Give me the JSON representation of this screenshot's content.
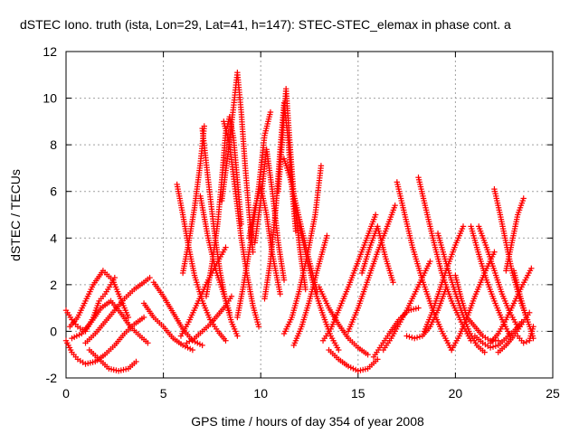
{
  "chart_data": {
    "type": "scatter",
    "title": "dSTEC Iono. truth (ista, Lon=29, Lat=41, h=147): STEC-STEC_elemax in phase cont. a",
    "xlabel": "GPS time / hours of day 354 of year 2008",
    "ylabel": "dSTEC  / TECUs",
    "xlim": [
      0,
      25
    ],
    "ylim": [
      -2,
      12
    ],
    "xticks": [
      0,
      5,
      10,
      15,
      20,
      25
    ],
    "yticks": [
      -2,
      0,
      2,
      4,
      6,
      8,
      10,
      12
    ],
    "grid": true,
    "marker": "plus",
    "color": "#ff0000",
    "series": [
      {
        "x": [
          0.0,
          0.3,
          0.6,
          1.0,
          1.4,
          1.7,
          2.0,
          2.3,
          2.5
        ],
        "y": [
          0.9,
          0.5,
          0.2,
          0.0,
          0.6,
          1.3,
          1.6,
          2.0,
          2.3
        ]
      },
      {
        "x": [
          0.2,
          0.6,
          1.0,
          1.4,
          1.9,
          2.4,
          2.8,
          3.2
        ],
        "y": [
          0.2,
          0.6,
          1.3,
          2.0,
          2.6,
          2.2,
          1.4,
          0.6
        ]
      },
      {
        "x": [
          0.3,
          0.8,
          1.3,
          1.8,
          2.3,
          2.8,
          3.3,
          3.8,
          4.2
        ],
        "y": [
          -0.3,
          -0.1,
          0.4,
          1.0,
          1.3,
          0.8,
          0.2,
          -0.2,
          -0.5
        ]
      },
      {
        "x": [
          0.0,
          0.3,
          0.6,
          1.0,
          1.5,
          2.0,
          2.5,
          3.0,
          3.5,
          4.0
        ],
        "y": [
          -0.4,
          -0.9,
          -1.2,
          -1.4,
          -1.3,
          -1.0,
          -0.6,
          -0.1,
          0.3,
          0.6
        ]
      },
      {
        "x": [
          1.2,
          1.7,
          2.2,
          2.7,
          3.2,
          3.6
        ],
        "y": [
          -0.8,
          -1.2,
          -1.6,
          -1.7,
          -1.6,
          -1.3
        ]
      },
      {
        "x": [
          1.0,
          1.5,
          2.0,
          2.5,
          3.0,
          3.5,
          4.0,
          4.3
        ],
        "y": [
          -0.5,
          -0.1,
          0.4,
          0.9,
          1.4,
          1.8,
          2.1,
          2.3
        ]
      },
      {
        "x": [
          4.0,
          4.5,
          5.0,
          5.5,
          6.0,
          6.5
        ],
        "y": [
          1.2,
          0.6,
          0.2,
          -0.3,
          -0.6,
          -0.8
        ]
      },
      {
        "x": [
          4.5,
          5.0,
          5.5,
          6.0,
          6.5,
          7.0
        ],
        "y": [
          2.1,
          1.5,
          0.8,
          0.1,
          -0.4,
          -0.6
        ]
      },
      {
        "x": [
          5.7,
          6.0,
          6.3,
          6.6,
          7.0,
          7.4,
          7.8,
          8.2
        ],
        "y": [
          6.3,
          5.0,
          3.6,
          2.4,
          1.3,
          0.5,
          0.0,
          -0.4
        ]
      },
      {
        "x": [
          5.9,
          6.3,
          6.8,
          7.3,
          7.8,
          8.2
        ],
        "y": [
          -0.2,
          0.4,
          1.3,
          2.2,
          3.0,
          3.6
        ]
      },
      {
        "x": [
          6.2,
          6.6,
          7.0,
          7.4,
          7.8,
          8.2,
          8.5
        ],
        "y": [
          -0.5,
          -0.3,
          0.0,
          0.3,
          0.7,
          1.1,
          1.5
        ]
      },
      {
        "x": [
          6.0,
          6.3,
          6.6,
          6.9,
          7.1
        ],
        "y": [
          2.5,
          3.8,
          5.3,
          7.2,
          8.8
        ]
      },
      {
        "x": [
          6.9,
          7.3,
          7.7,
          8.1,
          8.4
        ],
        "y": [
          5.8,
          4.0,
          2.6,
          1.6,
          0.8
        ]
      },
      {
        "x": [
          7.0,
          7.3,
          7.6,
          7.9,
          8.2,
          8.5,
          8.8
        ],
        "y": [
          8.7,
          6.5,
          4.4,
          2.6,
          1.3,
          0.4,
          -0.2
        ]
      },
      {
        "x": [
          7.2,
          7.5,
          7.8,
          8.0,
          8.2,
          8.4,
          8.6,
          8.8,
          9.0
        ],
        "y": [
          1.5,
          2.9,
          4.7,
          6.5,
          8.5,
          9.2,
          8.3,
          6.5,
          4.6
        ]
      },
      {
        "x": [
          8.0,
          8.3,
          8.6,
          8.8,
          9.0,
          9.2,
          9.4,
          9.6
        ],
        "y": [
          5.6,
          7.5,
          9.6,
          11.1,
          9.4,
          7.1,
          5.1,
          3.4
        ]
      },
      {
        "x": [
          8.1,
          8.4,
          8.7,
          9.0,
          9.3,
          9.6,
          9.9
        ],
        "y": [
          9.0,
          8.0,
          6.0,
          4.0,
          2.4,
          1.1,
          0.2
        ]
      },
      {
        "x": [
          8.8,
          9.1,
          9.5,
          9.9,
          10.2,
          10.5
        ],
        "y": [
          0.6,
          1.9,
          3.9,
          6.2,
          8.4,
          9.4
        ]
      },
      {
        "x": [
          9.4,
          9.7,
          10.0,
          10.3,
          10.6,
          11.0
        ],
        "y": [
          4.0,
          5.3,
          6.2,
          5.0,
          3.3,
          1.6
        ]
      },
      {
        "x": [
          9.7,
          10.0,
          10.3,
          10.6,
          10.9,
          11.2
        ],
        "y": [
          3.8,
          5.6,
          7.8,
          6.0,
          3.8,
          2.2
        ]
      },
      {
        "x": [
          10.2,
          10.5,
          10.8,
          11.0,
          11.2,
          11.4,
          11.6,
          11.8
        ],
        "y": [
          1.4,
          3.0,
          5.5,
          7.8,
          9.8,
          8.3,
          6.2,
          4.3
        ]
      },
      {
        "x": [
          10.9,
          11.1,
          11.3,
          11.5,
          11.7,
          12.0,
          12.3
        ],
        "y": [
          6.0,
          8.1,
          10.4,
          8.0,
          5.8,
          3.6,
          1.8
        ]
      },
      {
        "x": [
          11.2,
          11.5,
          11.8,
          12.1,
          12.5,
          12.9
        ],
        "y": [
          7.4,
          6.6,
          5.5,
          4.4,
          3.0,
          1.7
        ]
      },
      {
        "x": [
          11.2,
          11.6,
          12.0,
          12.4,
          12.8,
          13.1
        ],
        "y": [
          -0.1,
          0.6,
          1.8,
          3.3,
          5.0,
          7.1
        ]
      },
      {
        "x": [
          12.0,
          12.4,
          12.8,
          13.2,
          13.6,
          14.0
        ],
        "y": [
          4.5,
          3.0,
          1.7,
          0.7,
          -0.2,
          -0.8
        ]
      },
      {
        "x": [
          11.7,
          12.1,
          12.5,
          12.9,
          13.4
        ],
        "y": [
          -0.6,
          0.2,
          1.3,
          2.6,
          4.1
        ]
      },
      {
        "x": [
          13.2,
          13.6,
          14.0,
          14.5,
          15.0,
          15.5,
          15.9
        ],
        "y": [
          -0.4,
          0.1,
          0.9,
          1.9,
          3.0,
          4.1,
          5.0
        ]
      },
      {
        "x": [
          13.0,
          13.5,
          14.0,
          14.5,
          15.0,
          15.5
        ],
        "y": [
          1.9,
          1.0,
          0.3,
          -0.3,
          -0.7,
          -1.0
        ]
      },
      {
        "x": [
          13.5,
          14.0,
          14.5,
          15.0,
          15.5,
          16.0
        ],
        "y": [
          -0.8,
          -1.2,
          -1.5,
          -1.7,
          -1.6,
          -1.2
        ]
      },
      {
        "x": [
          14.5,
          15.0,
          15.5,
          16.0,
          16.5,
          16.9
        ],
        "y": [
          0.0,
          1.0,
          2.2,
          3.4,
          4.5,
          5.4
        ]
      },
      {
        "x": [
          15.2,
          15.6,
          16.0,
          16.4,
          16.8
        ],
        "y": [
          2.5,
          3.6,
          4.5,
          3.2,
          2.1
        ]
      },
      {
        "x": [
          15.8,
          16.2,
          16.6,
          17.1,
          17.6,
          18.1
        ],
        "y": [
          -1.1,
          -0.6,
          -0.1,
          0.5,
          0.9,
          1.0
        ]
      },
      {
        "x": [
          16.3,
          16.7,
          17.1,
          17.5,
          17.9,
          18.3,
          18.7
        ],
        "y": [
          -0.8,
          -0.3,
          0.3,
          0.9,
          1.6,
          2.3,
          3.0
        ]
      },
      {
        "x": [
          17.0,
          17.4,
          17.8,
          18.3,
          18.8,
          19.3,
          19.8
        ],
        "y": [
          6.4,
          5.0,
          3.6,
          2.2,
          1.0,
          0.0,
          -0.8
        ]
      },
      {
        "x": [
          17.5,
          17.9,
          18.3,
          18.7,
          19.1,
          19.5
        ],
        "y": [
          -0.2,
          -0.3,
          -0.2,
          0.2,
          0.9,
          1.8
        ]
      },
      {
        "x": [
          18.1,
          18.5,
          18.9,
          19.3,
          19.8,
          20.3,
          20.8
        ],
        "y": [
          6.6,
          5.2,
          3.8,
          2.5,
          1.3,
          0.4,
          -0.4
        ]
      },
      {
        "x": [
          18.4,
          18.8,
          19.2,
          19.6,
          20.0,
          20.4
        ],
        "y": [
          0.0,
          0.8,
          1.8,
          2.8,
          3.7,
          4.5
        ]
      },
      {
        "x": [
          19.1,
          19.5,
          19.9,
          20.3,
          20.7,
          21.1,
          21.5
        ],
        "y": [
          4.2,
          3.0,
          1.9,
          0.9,
          0.0,
          -0.6,
          -0.9
        ]
      },
      {
        "x": [
          19.8,
          20.2,
          20.6,
          21.0,
          21.5,
          22.0
        ],
        "y": [
          -0.8,
          -0.2,
          0.6,
          1.5,
          2.5,
          3.4
        ]
      },
      {
        "x": [
          20.8,
          21.2,
          21.6,
          22.0,
          22.4,
          22.8
        ],
        "y": [
          4.5,
          3.3,
          2.2,
          1.3,
          0.5,
          -0.2
        ]
      },
      {
        "x": [
          21.2,
          21.6,
          22.0,
          22.4,
          22.8,
          23.2
        ],
        "y": [
          4.5,
          3.6,
          2.6,
          1.6,
          0.8,
          0.2
        ]
      },
      {
        "x": [
          21.8,
          22.2,
          22.6,
          23.0,
          23.4,
          23.9
        ],
        "y": [
          -0.5,
          -0.1,
          0.5,
          1.2,
          1.9,
          2.7
        ]
      },
      {
        "x": [
          22.2,
          22.6,
          23.0,
          23.4,
          23.8
        ],
        "y": [
          -0.9,
          -0.6,
          -0.2,
          0.3,
          0.8
        ]
      },
      {
        "x": [
          22.0,
          22.3,
          22.6,
          22.9,
          23.3,
          23.7
        ],
        "y": [
          6.1,
          5.0,
          3.8,
          2.6,
          1.4,
          0.5
        ]
      },
      {
        "x": [
          22.6,
          22.9,
          23.2,
          23.5
        ],
        "y": [
          2.6,
          3.8,
          5.0,
          5.7
        ]
      },
      {
        "x": [
          23.0,
          23.3,
          23.6,
          23.9,
          24.0
        ],
        "y": [
          2.6,
          1.6,
          0.7,
          0.0,
          -0.3
        ]
      },
      {
        "x": [
          23.2,
          23.5,
          23.8,
          24.0
        ],
        "y": [
          -0.2,
          -0.5,
          -0.4,
          0.2
        ]
      },
      {
        "x": [
          21.0,
          21.4,
          21.8,
          22.2,
          22.6,
          23.0,
          23.4
        ],
        "y": [
          -0.2,
          -0.5,
          -0.7,
          -0.6,
          -0.3,
          0.0,
          0.4
        ]
      },
      {
        "x": [
          20.0,
          20.3,
          20.6,
          21.0,
          21.4,
          21.8,
          22.2
        ],
        "y": [
          2.4,
          1.4,
          0.6,
          0.2,
          -0.2,
          -0.4,
          -0.4
        ]
      }
    ]
  }
}
